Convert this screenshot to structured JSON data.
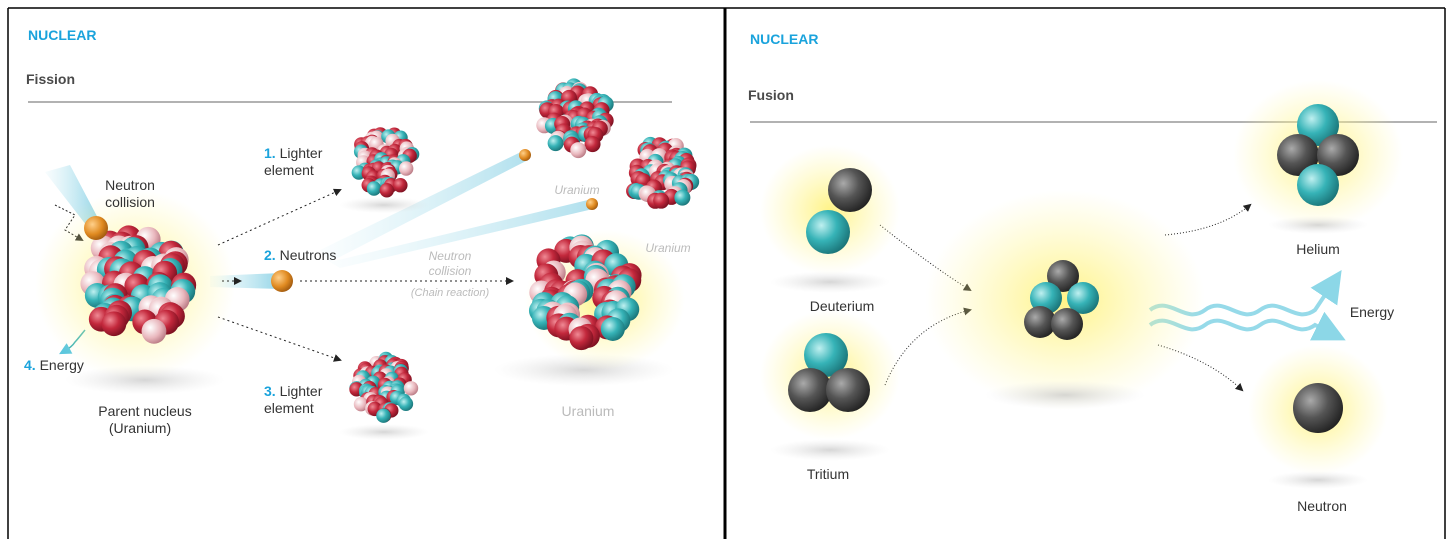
{
  "fission": {
    "kicker": "NUCLEAR",
    "title": "Fission",
    "neutron_collision": [
      "Neutron",
      "collision"
    ],
    "steps": [
      {
        "number": "1.",
        "text": [
          "Lighter",
          "element"
        ]
      },
      {
        "number": "2.",
        "text": [
          "Neutrons"
        ]
      },
      {
        "number": "3.",
        "text": [
          "Lighter",
          "element"
        ]
      },
      {
        "number": "4.",
        "text": [
          "Energy"
        ]
      }
    ],
    "uranium_labels": [
      "Uranium",
      "Uranium",
      "Uranium"
    ],
    "chain": {
      "text": [
        "Neutron",
        "collision"
      ],
      "note": "(Chain reaction)"
    },
    "parent": {
      "name": "Parent nucleus",
      "note": "(Uranium)"
    }
  },
  "fusion": {
    "kicker": "NUCLEAR",
    "title": "Fusion",
    "labels": [
      "Deuterium",
      "Tritium",
      "Helium",
      "Energy",
      "Neutron"
    ]
  }
}
